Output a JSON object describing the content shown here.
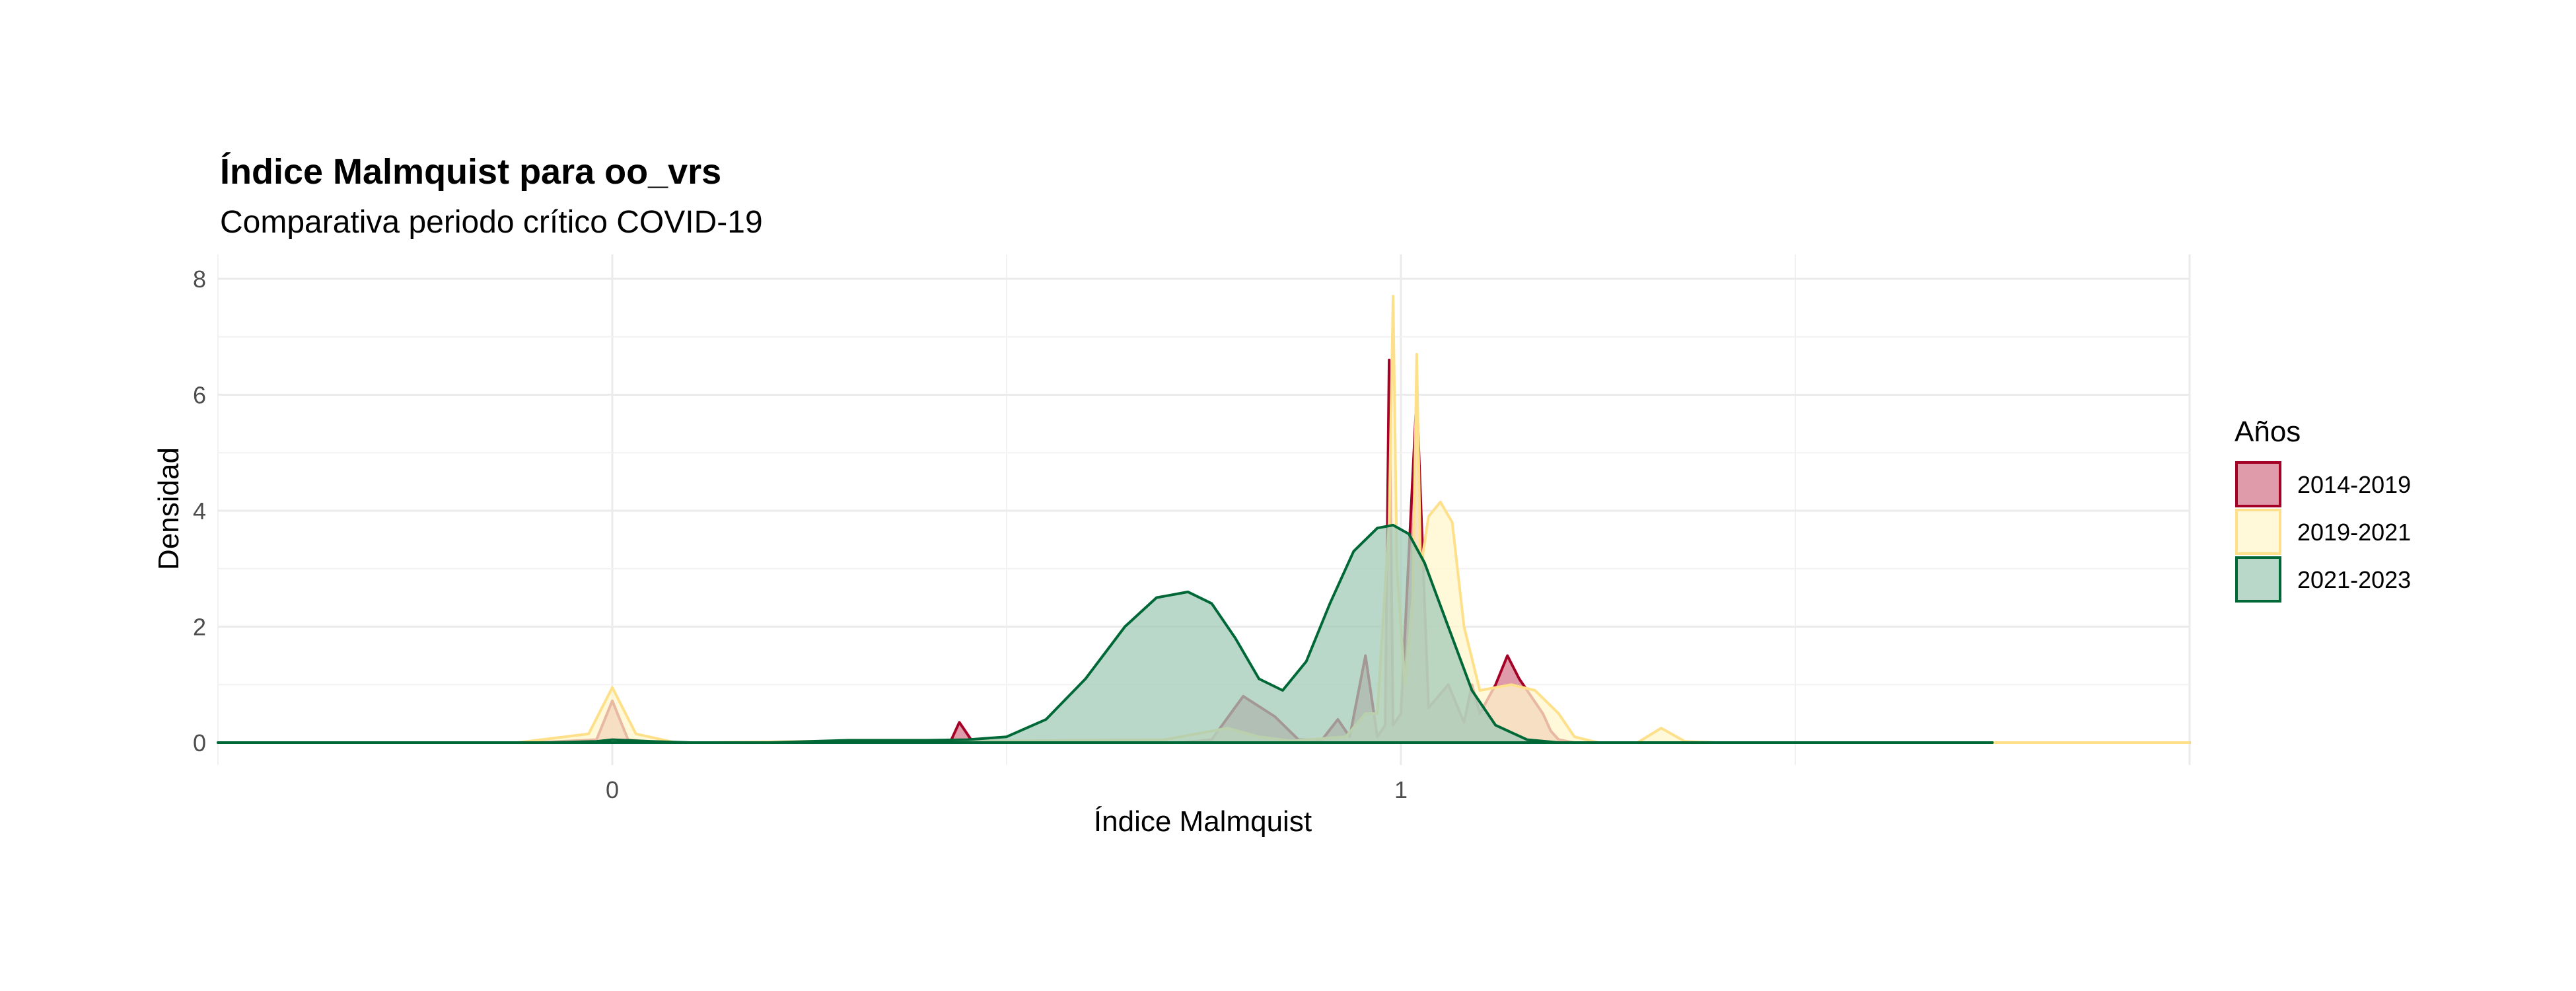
{
  "chart_data": {
    "type": "area",
    "title": "Índice Malmquist para oo_vrs",
    "subtitle": "Comparativa periodo crítico COVID-19",
    "xlabel": "Índice Malmquist",
    "ylabel": "Densidad",
    "xlim": [
      -0.5,
      2.0
    ],
    "ylim": [
      0,
      8
    ],
    "x_ticks": [
      {
        "value": 0,
        "label": "0"
      },
      {
        "value": 1,
        "label": "1"
      }
    ],
    "y_ticks": [
      {
        "value": 0,
        "label": "0"
      },
      {
        "value": 2,
        "label": "2"
      },
      {
        "value": 4,
        "label": "4"
      },
      {
        "value": 6,
        "label": "6"
      },
      {
        "value": 8,
        "label": "8"
      }
    ],
    "grid": true,
    "legend": {
      "title": "Años",
      "position": "right"
    },
    "series": [
      {
        "name": "2014-2019",
        "color": "#a50026",
        "fill": "#d47a8c",
        "points": [
          [
            -0.5,
            0
          ],
          [
            -0.1,
            0
          ],
          [
            -0.02,
            0.05
          ],
          [
            0.0,
            0.72
          ],
          [
            0.02,
            0.05
          ],
          [
            0.06,
            0
          ],
          [
            0.4,
            0
          ],
          [
            0.43,
            0.05
          ],
          [
            0.44,
            0.35
          ],
          [
            0.455,
            0.05
          ],
          [
            0.48,
            0
          ],
          [
            0.72,
            0
          ],
          [
            0.76,
            0.05
          ],
          [
            0.8,
            0.8
          ],
          [
            0.84,
            0.45
          ],
          [
            0.87,
            0.05
          ],
          [
            0.9,
            0.05
          ],
          [
            0.92,
            0.4
          ],
          [
            0.935,
            0.1
          ],
          [
            0.955,
            1.5
          ],
          [
            0.97,
            0.1
          ],
          [
            0.98,
            0.3
          ],
          [
            0.985,
            6.6
          ],
          [
            0.99,
            0.3
          ],
          [
            1.0,
            0.5
          ],
          [
            1.02,
            6.0
          ],
          [
            1.035,
            0.6
          ],
          [
            1.06,
            1.0
          ],
          [
            1.08,
            0.35
          ],
          [
            1.09,
            1.0
          ],
          [
            1.1,
            0.5
          ],
          [
            1.12,
            1.0
          ],
          [
            1.135,
            1.5
          ],
          [
            1.15,
            1.1
          ],
          [
            1.17,
            0.7
          ],
          [
            1.18,
            0.5
          ],
          [
            1.19,
            0.2
          ],
          [
            1.2,
            0.05
          ],
          [
            1.22,
            0
          ],
          [
            2.0,
            0
          ]
        ]
      },
      {
        "name": "2019-2021",
        "color": "#fee08b",
        "fill": "#fff5cc",
        "points": [
          [
            -0.5,
            0
          ],
          [
            -0.12,
            0
          ],
          [
            -0.03,
            0.15
          ],
          [
            0.0,
            0.95
          ],
          [
            0.03,
            0.15
          ],
          [
            0.08,
            0
          ],
          [
            0.12,
            0
          ],
          [
            0.3,
            0.03
          ],
          [
            0.5,
            0.03
          ],
          [
            0.7,
            0.05
          ],
          [
            0.78,
            0.25
          ],
          [
            0.82,
            0.1
          ],
          [
            0.86,
            0.03
          ],
          [
            0.93,
            0.1
          ],
          [
            0.955,
            0.5
          ],
          [
            0.97,
            0.5
          ],
          [
            0.985,
            3.8
          ],
          [
            0.99,
            7.7
          ],
          [
            0.995,
            3.0
          ],
          [
            1.005,
            1.0
          ],
          [
            1.015,
            2.5
          ],
          [
            1.02,
            6.7
          ],
          [
            1.025,
            3.0
          ],
          [
            1.035,
            3.9
          ],
          [
            1.05,
            4.15
          ],
          [
            1.065,
            3.8
          ],
          [
            1.08,
            2.0
          ],
          [
            1.1,
            0.9
          ],
          [
            1.14,
            1.0
          ],
          [
            1.17,
            0.9
          ],
          [
            1.2,
            0.5
          ],
          [
            1.22,
            0.1
          ],
          [
            1.25,
            0
          ],
          [
            1.3,
            0
          ],
          [
            1.33,
            0.25
          ],
          [
            1.36,
            0.02
          ],
          [
            1.4,
            0
          ],
          [
            2.0,
            0
          ]
        ]
      },
      {
        "name": "2021-2023",
        "color": "#006837",
        "fill": "#a3cbb8",
        "points": [
          [
            -0.5,
            0
          ],
          [
            -0.08,
            0
          ],
          [
            -0.02,
            0.02
          ],
          [
            0.0,
            0.05
          ],
          [
            0.05,
            0.02
          ],
          [
            0.1,
            0
          ],
          [
            0.2,
            0
          ],
          [
            0.25,
            0.02
          ],
          [
            0.3,
            0.04
          ],
          [
            0.4,
            0.04
          ],
          [
            0.45,
            0.05
          ],
          [
            0.5,
            0.1
          ],
          [
            0.55,
            0.4
          ],
          [
            0.6,
            1.1
          ],
          [
            0.65,
            2.0
          ],
          [
            0.69,
            2.5
          ],
          [
            0.73,
            2.6
          ],
          [
            0.76,
            2.4
          ],
          [
            0.79,
            1.8
          ],
          [
            0.82,
            1.1
          ],
          [
            0.85,
            0.9
          ],
          [
            0.88,
            1.4
          ],
          [
            0.91,
            2.4
          ],
          [
            0.94,
            3.3
          ],
          [
            0.97,
            3.7
          ],
          [
            0.99,
            3.75
          ],
          [
            1.01,
            3.6
          ],
          [
            1.03,
            3.1
          ],
          [
            1.06,
            2.0
          ],
          [
            1.09,
            0.9
          ],
          [
            1.12,
            0.3
          ],
          [
            1.16,
            0.05
          ],
          [
            1.2,
            0
          ],
          [
            1.75,
            0
          ]
        ]
      }
    ]
  }
}
